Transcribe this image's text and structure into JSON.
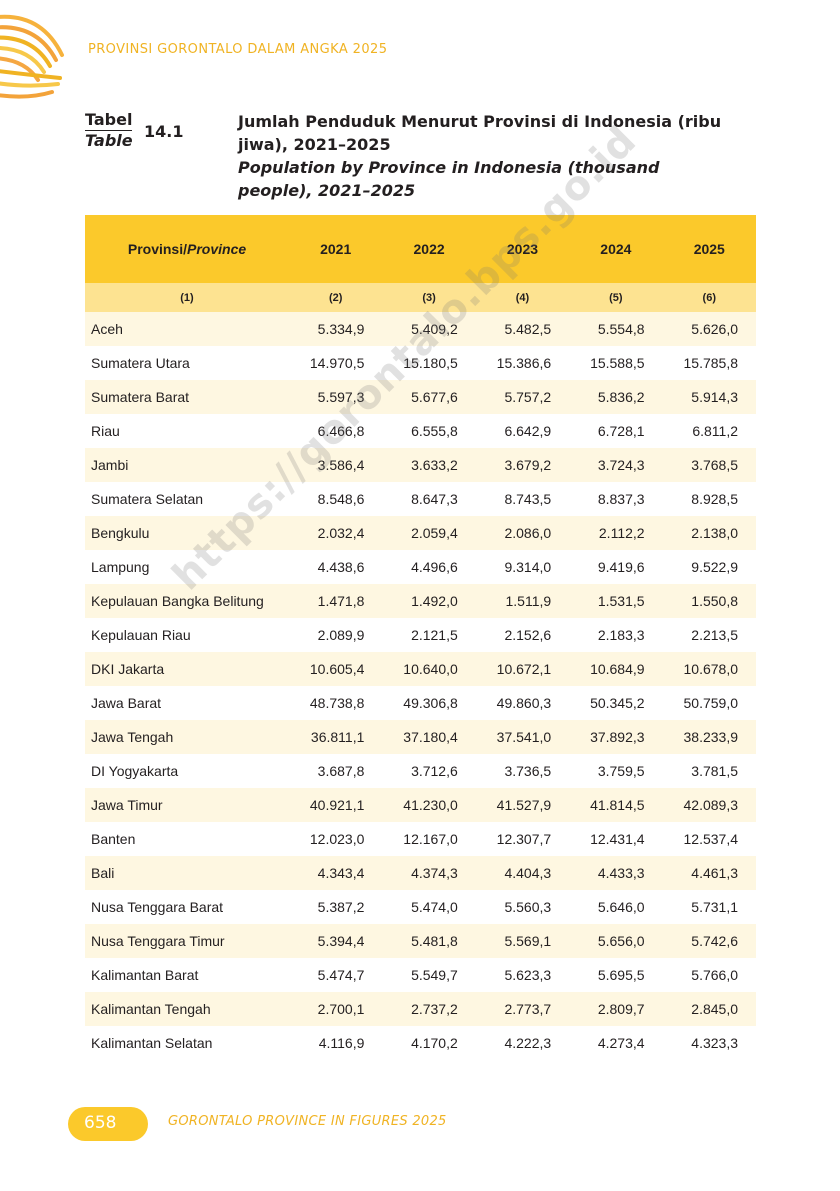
{
  "header": {
    "publication_title": "PROVINSI GORONTALO DALAM ANGKA 2025"
  },
  "table_label": {
    "id": "Tabel",
    "en": "Table",
    "number": "14.1"
  },
  "title": {
    "id": "Jumlah Penduduk Menurut Provinsi di Indonesia (ribu jiwa), 2021–2025",
    "en": "Population by Province in Indonesia (thousand people), 2021–2025"
  },
  "watermark": "https://gorontalo.bps.go.id",
  "columns": {
    "province_id": "Provinsi/",
    "province_en": "Province",
    "years": [
      "2021",
      "2022",
      "2023",
      "2024",
      "2025"
    ],
    "numbers": [
      "(1)",
      "(2)",
      "(3)",
      "(4)",
      "(5)",
      "(6)"
    ]
  },
  "rows": [
    {
      "name": "Aceh",
      "values": [
        "5.334,9",
        "5.409,2",
        "5.482,5",
        "5.554,8",
        "5.626,0"
      ]
    },
    {
      "name": "Sumatera Utara",
      "values": [
        "14.970,5",
        "15.180,5",
        "15.386,6",
        "15.588,5",
        "15.785,8"
      ]
    },
    {
      "name": "Sumatera Barat",
      "values": [
        "5.597,3",
        "5.677,6",
        "5.757,2",
        "5.836,2",
        "5.914,3"
      ]
    },
    {
      "name": "Riau",
      "values": [
        "6.466,8",
        "6.555,8",
        "6.642,9",
        "6.728,1",
        "6.811,2"
      ]
    },
    {
      "name": "Jambi",
      "values": [
        "3.586,4",
        "3.633,2",
        "3.679,2",
        "3.724,3",
        "3.768,5"
      ]
    },
    {
      "name": "Sumatera Selatan",
      "values": [
        "8.548,6",
        "8.647,3",
        "8.743,5",
        "8.837,3",
        "8.928,5"
      ]
    },
    {
      "name": "Bengkulu",
      "values": [
        "2.032,4",
        "2.059,4",
        "2.086,0",
        "2.112,2",
        "2.138,0"
      ]
    },
    {
      "name": "Lampung",
      "values": [
        "4.438,6",
        "4.496,6",
        "9.314,0",
        "9.419,6",
        "9.522,9"
      ]
    },
    {
      "name": "Kepulauan Bangka Belitung",
      "values": [
        "1.471,8",
        "1.492,0",
        "1.511,9",
        "1.531,5",
        "1.550,8"
      ]
    },
    {
      "name": "Kepulauan Riau",
      "values": [
        "2.089,9",
        "2.121,5",
        "2.152,6",
        "2.183,3",
        "2.213,5"
      ]
    },
    {
      "name": "DKI Jakarta",
      "values": [
        "10.605,4",
        "10.640,0",
        "10.672,1",
        "10.684,9",
        "10.678,0"
      ]
    },
    {
      "name": "Jawa Barat",
      "values": [
        "48.738,8",
        "49.306,8",
        "49.860,3",
        "50.345,2",
        "50.759,0"
      ]
    },
    {
      "name": "Jawa Tengah",
      "values": [
        "36.811,1",
        "37.180,4",
        "37.541,0",
        "37.892,3",
        "38.233,9"
      ]
    },
    {
      "name": "DI Yogyakarta",
      "values": [
        "3.687,8",
        "3.712,6",
        "3.736,5",
        "3.759,5",
        "3.781,5"
      ]
    },
    {
      "name": "Jawa Timur",
      "values": [
        "40.921,1",
        "41.230,0",
        "41.527,9",
        "41.814,5",
        "42.089,3"
      ]
    },
    {
      "name": "Banten",
      "values": [
        "12.023,0",
        "12.167,0",
        "12.307,7",
        "12.431,4",
        "12.537,4"
      ]
    },
    {
      "name": "Bali",
      "values": [
        "4.343,4",
        "4.374,3",
        "4.404,3",
        "4.433,3",
        "4.461,3"
      ]
    },
    {
      "name": "Nusa Tenggara Barat",
      "values": [
        "5.387,2",
        "5.474,0",
        "5.560,3",
        "5.646,0",
        "5.731,1"
      ]
    },
    {
      "name": "Nusa Tenggara Timur",
      "values": [
        "5.394,4",
        "5.481,8",
        "5.569,1",
        "5.656,0",
        "5.742,6"
      ]
    },
    {
      "name": "Kalimantan Barat",
      "values": [
        "5.474,7",
        "5.549,7",
        "5.623,3",
        "5.695,5",
        "5.766,0"
      ]
    },
    {
      "name": "Kalimantan Tengah",
      "values": [
        "2.700,1",
        "2.737,2",
        "2.773,7",
        "2.809,7",
        "2.845,0"
      ]
    },
    {
      "name": "Kalimantan Selatan",
      "values": [
        "4.116,9",
        "4.170,2",
        "4.222,3",
        "4.273,4",
        "4.323,3"
      ]
    }
  ],
  "footer": {
    "page_number": "658",
    "publication_title": "GORONTALO PROVINCE IN FIGURES 2025"
  },
  "colors": {
    "accent": "#fbc92b",
    "accent_light": "#fde391",
    "row_stripe": "#fef7e1",
    "header_text": "#f0b323"
  }
}
